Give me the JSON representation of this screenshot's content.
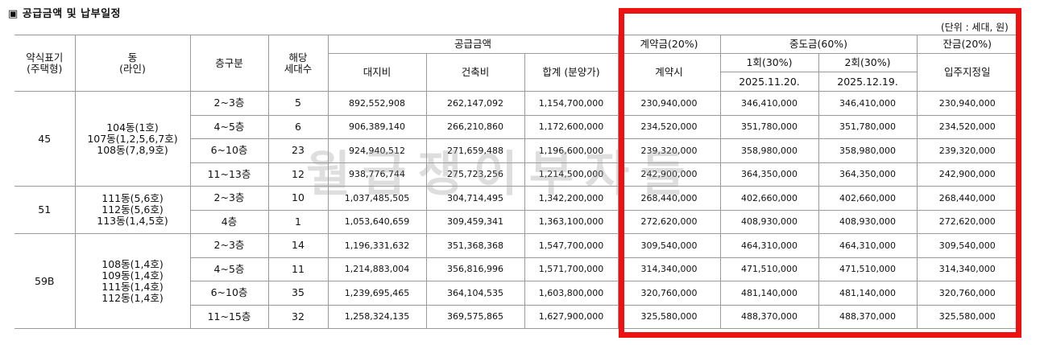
{
  "title": "▣ 공급금액 및 납부일정",
  "unit": "(단위 : 세대, 원)",
  "watermark": "월급쟁이부자들",
  "colors": {
    "highlight": "#ee1111"
  },
  "headers": {
    "type": "약식표기\n(주택형)",
    "dong": "동\n(라인)",
    "floor": "층구분",
    "households": "해당\n세대수",
    "supply": "공급금액",
    "land": "대지비",
    "building": "건축비",
    "total": "합계 (분양가)",
    "deposit": "계약금(20%)",
    "deposit_when": "계약시",
    "middle": "중도금(60%)",
    "mid1": "1회(30%)",
    "mid1_date": "2025.11.20.",
    "mid2": "2회(30%)",
    "mid2_date": "2025.12.19.",
    "balance": "잔금(20%)",
    "balance_when": "입주지정일"
  },
  "groups": [
    {
      "type": "45",
      "dong": "104동(1호)\n107동(1,2,5,6,7호)\n108동(7,8,9호)",
      "rows": [
        {
          "floor": "2~3층",
          "households": "5",
          "land": "892,552,908",
          "building": "262,147,092",
          "total": "1,154,700,000",
          "deposit": "230,940,000",
          "mid1": "346,410,000",
          "mid2": "346,410,000",
          "balance": "230,940,000"
        },
        {
          "floor": "4~5층",
          "households": "6",
          "land": "906,389,140",
          "building": "266,210,860",
          "total": "1,172,600,000",
          "deposit": "234,520,000",
          "mid1": "351,780,000",
          "mid2": "351,780,000",
          "balance": "234,520,000"
        },
        {
          "floor": "6~10층",
          "households": "23",
          "land": "924,940,512",
          "building": "271,659,488",
          "total": "1,196,600,000",
          "deposit": "239,320,000",
          "mid1": "358,980,000",
          "mid2": "358,980,000",
          "balance": "239,320,000"
        },
        {
          "floor": "11~13층",
          "households": "12",
          "land": "938,776,744",
          "building": "275,723,256",
          "total": "1,214,500,000",
          "deposit": "242,900,000",
          "mid1": "364,350,000",
          "mid2": "364,350,000",
          "balance": "242,900,000"
        }
      ]
    },
    {
      "type": "51",
      "dong": "111동(5,6호)\n112동(5,6호)\n113동(1,4,5호)",
      "rows": [
        {
          "floor": "2~3층",
          "households": "10",
          "land": "1,037,485,505",
          "building": "304,714,495",
          "total": "1,342,200,000",
          "deposit": "268,440,000",
          "mid1": "402,660,000",
          "mid2": "402,660,000",
          "balance": "268,440,000"
        },
        {
          "floor": "4층",
          "households": "1",
          "land": "1,053,640,659",
          "building": "309,459,341",
          "total": "1,363,100,000",
          "deposit": "272,620,000",
          "mid1": "408,930,000",
          "mid2": "408,930,000",
          "balance": "272,620,000"
        }
      ]
    },
    {
      "type": "59B",
      "dong": "108동(1,4호)\n109동(1,4호)\n111동(1,4호)\n112동(1,4호)",
      "rows": [
        {
          "floor": "2~3층",
          "households": "14",
          "land": "1,196,331,632",
          "building": "351,368,368",
          "total": "1,547,700,000",
          "deposit": "309,540,000",
          "mid1": "464,310,000",
          "mid2": "464,310,000",
          "balance": "309,540,000"
        },
        {
          "floor": "4~5층",
          "households": "11",
          "land": "1,214,883,004",
          "building": "356,816,996",
          "total": "1,571,700,000",
          "deposit": "314,340,000",
          "mid1": "471,510,000",
          "mid2": "471,510,000",
          "balance": "314,340,000"
        },
        {
          "floor": "6~10층",
          "households": "35",
          "land": "1,239,695,465",
          "building": "364,104,535",
          "total": "1,603,800,000",
          "deposit": "320,760,000",
          "mid1": "481,140,000",
          "mid2": "481,140,000",
          "balance": "320,760,000"
        },
        {
          "floor": "11~15층",
          "households": "32",
          "land": "1,258,324,135",
          "building": "369,575,865",
          "total": "1,627,900,000",
          "deposit": "325,580,000",
          "mid1": "488,370,000",
          "mid2": "488,370,000",
          "balance": "325,580,000"
        }
      ]
    }
  ]
}
